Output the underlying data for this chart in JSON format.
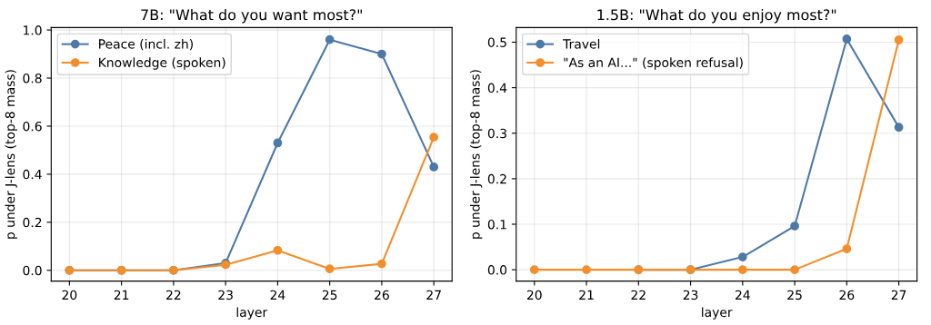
{
  "chart_data": [
    {
      "type": "line",
      "title": "7B: \"What do you want most?\"",
      "xlabel": "layer",
      "ylabel": "p under J-lens (top-8 mass)",
      "x": [
        20,
        21,
        22,
        23,
        24,
        25,
        26,
        27
      ],
      "xlim": [
        19.65,
        27.35
      ],
      "xticks": [
        20,
        21,
        22,
        23,
        24,
        25,
        26,
        27
      ],
      "ylim": [
        -0.045,
        1.01
      ],
      "yticks": [
        {
          "value": 0,
          "label": "0.0"
        },
        {
          "value": 0.2,
          "label": "0.2"
        },
        {
          "value": 0.4,
          "label": "0.4"
        },
        {
          "value": 0.6,
          "label": "0.6"
        },
        {
          "value": 0.8,
          "label": "0.8"
        },
        {
          "value": 1.0,
          "label": "1.0"
        }
      ],
      "grid": true,
      "legend": "top left",
      "marker": "circle",
      "line_style": "solid",
      "series": [
        {
          "name": "Peace (incl. zh)",
          "color": "#4e79a7",
          "values": [
            0,
            0,
            0,
            0.03,
            0.53,
            0.96,
            0.9,
            0.43
          ]
        },
        {
          "name": "Knowledge (spoken)",
          "color": "#f28e2b",
          "values": [
            0,
            0,
            0,
            0.023,
            0.083,
            0.006,
            0.027,
            0.554
          ]
        }
      ]
    },
    {
      "type": "line",
      "title": "1.5B: \"What do you enjoy most?\"",
      "xlabel": "layer",
      "ylabel": "p under J-lens (top-8 mass)",
      "x": [
        20,
        21,
        22,
        23,
        24,
        25,
        26,
        27
      ],
      "xlim": [
        19.65,
        27.35
      ],
      "xticks": [
        20,
        21,
        22,
        23,
        24,
        25,
        26,
        27
      ],
      "ylim": [
        -0.025,
        0.532
      ],
      "yticks": [
        {
          "value": 0,
          "label": "0.0"
        },
        0.1,
        0.2,
        0.3,
        0.4,
        0.5
      ],
      "grid": true,
      "legend": "top left",
      "marker": "circle",
      "line_style": "solid",
      "series": [
        {
          "name": "Travel",
          "color": "#4e79a7",
          "values": [
            null,
            null,
            0,
            0,
            0.028,
            0.096,
            0.507,
            0.313
          ]
        },
        {
          "name": "\"As an AI...\" (spoken refusal)",
          "color": "#f28e2b",
          "values": [
            0,
            0,
            0,
            0,
            0,
            0,
            0.046,
            0.505
          ]
        }
      ]
    }
  ]
}
